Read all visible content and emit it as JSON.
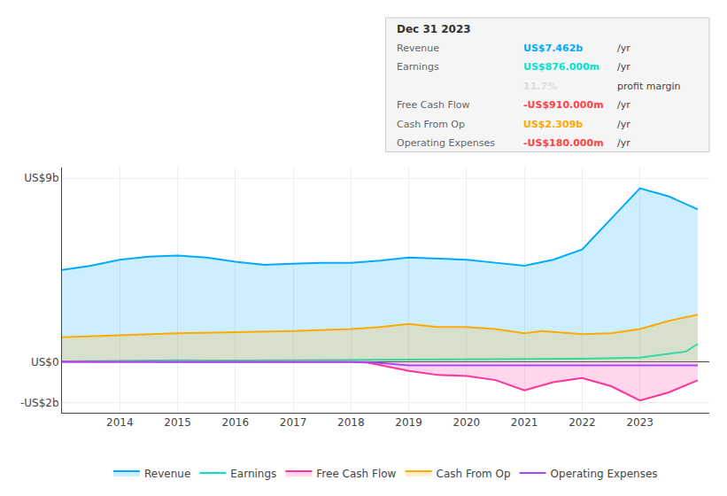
{
  "chart_data": {
    "type": "line",
    "series": [
      {
        "name": "Revenue",
        "color": "#00aaff",
        "type": "area",
        "x": [
          2013.0,
          2013.5,
          2014.0,
          2014.5,
          2015.0,
          2015.5,
          2016.0,
          2016.5,
          2017.0,
          2017.5,
          2018.0,
          2018.5,
          2019.0,
          2019.5,
          2020.0,
          2020.5,
          2021.0,
          2021.5,
          2022.0,
          2022.5,
          2023.0,
          2023.5,
          2024.0
        ],
        "values": [
          4.5,
          4.7,
          5.0,
          5.15,
          5.2,
          5.1,
          4.9,
          4.75,
          4.8,
          4.85,
          4.85,
          4.95,
          5.1,
          5.05,
          5.0,
          4.85,
          4.7,
          5.0,
          5.5,
          7.0,
          8.5,
          8.1,
          7.462
        ]
      },
      {
        "name": "Earnings",
        "color": "#00e5cc",
        "type": "line",
        "x": [
          2013.0,
          2014.0,
          2015.0,
          2016.0,
          2017.0,
          2018.0,
          2019.0,
          2020.0,
          2021.0,
          2022.0,
          2023.0,
          2023.8,
          2024.0
        ],
        "values": [
          0.02,
          0.05,
          0.07,
          0.06,
          0.07,
          0.08,
          0.09,
          0.1,
          0.12,
          0.15,
          0.2,
          0.5,
          0.876
        ]
      },
      {
        "name": "Free Cash Flow",
        "color": "#ff3399",
        "type": "area",
        "x": [
          2013.0,
          2018.0,
          2018.3,
          2019.0,
          2019.5,
          2020.0,
          2020.5,
          2021.0,
          2021.5,
          2022.0,
          2022.5,
          2023.0,
          2023.5,
          2024.0
        ],
        "values": [
          0.0,
          0.0,
          -0.05,
          -0.45,
          -0.65,
          -0.7,
          -0.9,
          -1.4,
          -1.0,
          -0.8,
          -1.2,
          -1.9,
          -1.5,
          -0.91
        ]
      },
      {
        "name": "Cash From Op",
        "color": "#ffaa00",
        "type": "area",
        "x": [
          2013.0,
          2014.0,
          2015.0,
          2016.0,
          2017.0,
          2018.0,
          2018.5,
          2019.0,
          2019.5,
          2020.0,
          2020.5,
          2021.0,
          2021.3,
          2022.0,
          2022.5,
          2023.0,
          2023.5,
          2024.0
        ],
        "values": [
          1.2,
          1.3,
          1.4,
          1.45,
          1.5,
          1.6,
          1.7,
          1.85,
          1.7,
          1.7,
          1.6,
          1.4,
          1.5,
          1.35,
          1.4,
          1.6,
          2.0,
          2.309
        ]
      },
      {
        "name": "Operating Expenses",
        "color": "#aa44ff",
        "type": "line",
        "x": [
          2013.0,
          2018.0,
          2018.3,
          2019.0,
          2020.0,
          2021.0,
          2022.0,
          2023.0,
          2024.0
        ],
        "values": [
          0.0,
          0.0,
          -0.02,
          -0.18,
          -0.18,
          -0.18,
          -0.18,
          -0.18,
          -0.18
        ]
      }
    ],
    "xlim": [
      2013.0,
      2024.2
    ],
    "xticks": [
      2014,
      2015,
      2016,
      2017,
      2018,
      2019,
      2020,
      2021,
      2022,
      2023
    ],
    "ylim": [
      -2.5,
      9.5
    ],
    "yticks": [
      {
        "value": -2,
        "label": "-US$2b"
      },
      {
        "value": 0,
        "label": "US$0"
      },
      {
        "value": 9,
        "label": "US$9b"
      }
    ],
    "grid": true,
    "legend": "bottom",
    "annotations": {
      "title": "Dec 31 2023",
      "rows": [
        {
          "label": "Revenue",
          "value": "US$7.462b",
          "suffix": "/yr",
          "color": "#00aaff"
        },
        {
          "label": "Earnings",
          "value": "US$876.000m",
          "suffix": "/yr",
          "color": "#00e5cc"
        },
        {
          "value": "11.7%",
          "suffix": "profit margin",
          "color": "#dddddd"
        },
        {
          "label": "Free Cash Flow",
          "value": "-US$910.000m",
          "suffix": "/yr",
          "color": "#ff4444"
        },
        {
          "label": "Cash From Op",
          "value": "US$2.309b",
          "suffix": "/yr",
          "color": "#ffaa00"
        },
        {
          "label": "Operating Expenses",
          "value": "-US$180.000m",
          "suffix": "/yr",
          "color": "#ff4444"
        }
      ]
    }
  }
}
